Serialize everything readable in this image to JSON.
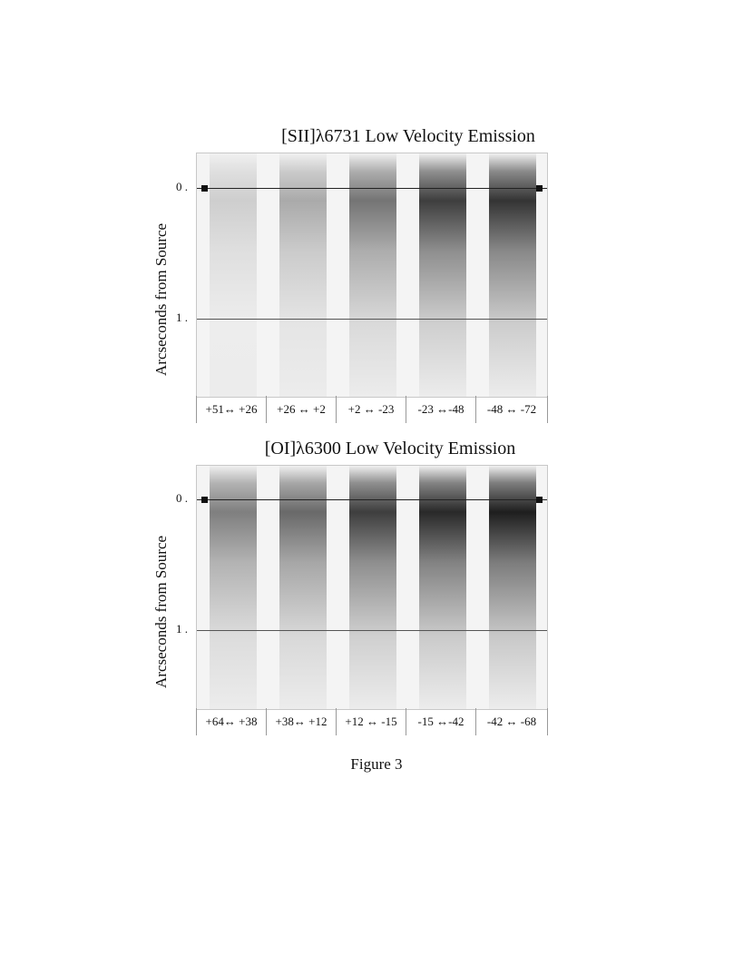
{
  "panels": [
    {
      "title": "[SII]λ6731 Low Velocity  Emission",
      "ylabel": "Arcseconds  from Source",
      "tick0": "0 .",
      "tick1": "1 .",
      "bins": [
        "+51↔ +26",
        "+26 ↔ +2",
        "+2 ↔ -23",
        "-23 ↔-48",
        "-48 ↔ -72"
      ],
      "peak_intensity": [
        0.18,
        0.35,
        0.6,
        0.85,
        0.9
      ]
    },
    {
      "title": "[OI]λ6300  Low Velocity Emission",
      "ylabel": "Arcseconds  from Source",
      "tick0": "0 .",
      "tick1": "1 .",
      "bins": [
        "+64↔ +38",
        "+38↔ +12",
        "+12 ↔ -15",
        "-15 ↔-42",
        "-42 ↔ -68"
      ],
      "peak_intensity": [
        0.55,
        0.65,
        0.85,
        0.95,
        1.0
      ]
    }
  ],
  "caption": "Figure 3"
}
